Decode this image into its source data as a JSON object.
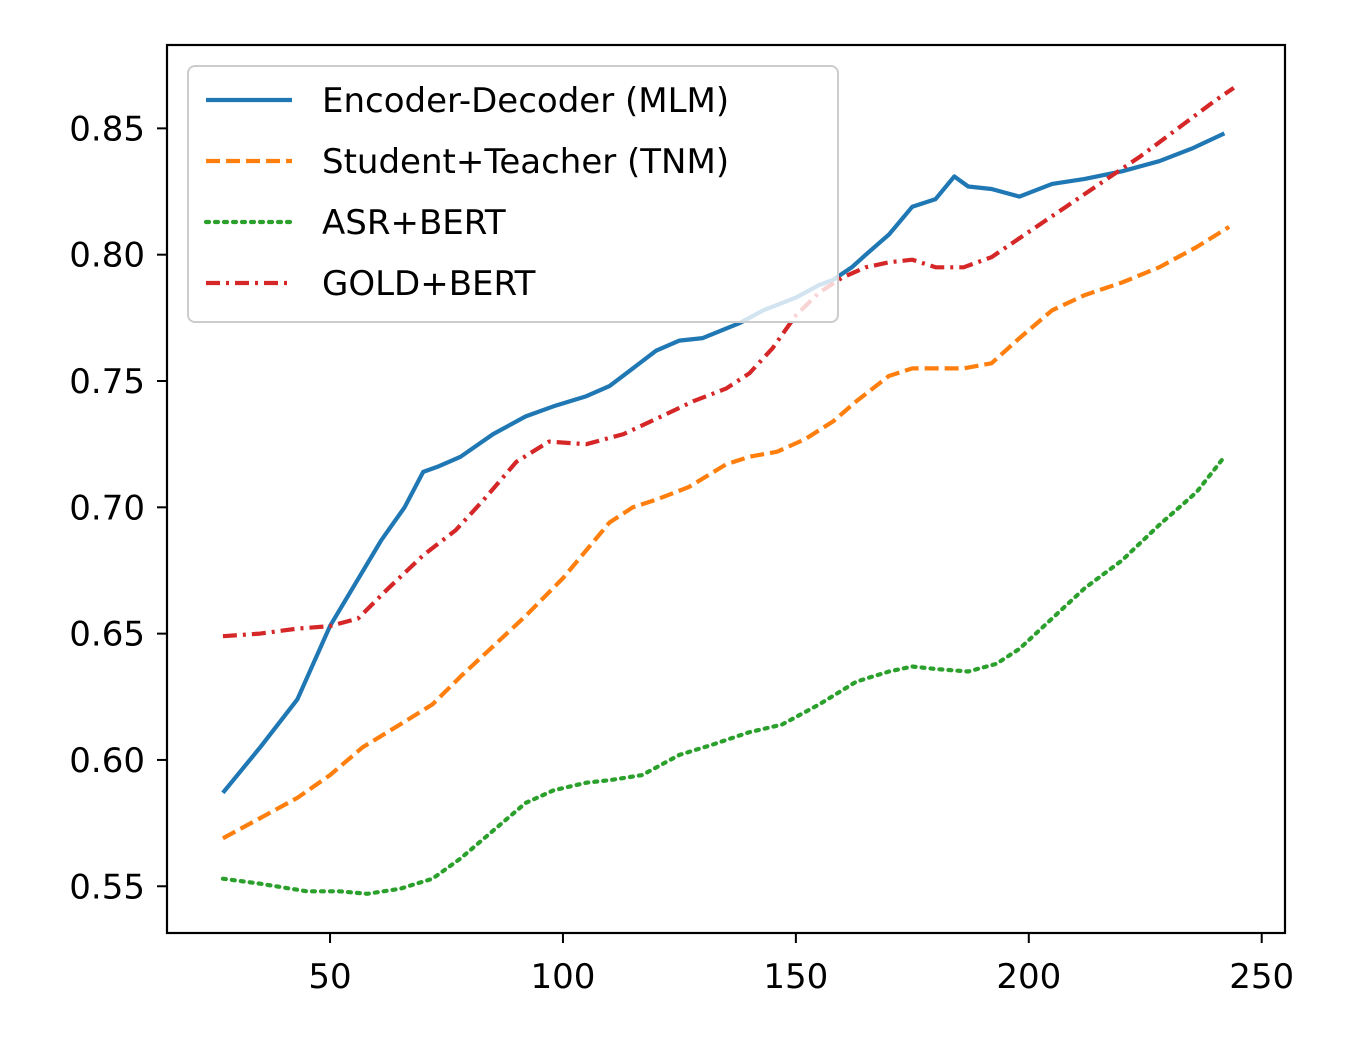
{
  "chart_data": {
    "type": "line",
    "title": "",
    "xlabel": "",
    "ylabel": "",
    "xlim": [
      15,
      255
    ],
    "ylim": [
      0.5315,
      0.883
    ],
    "x_ticks": [
      50,
      100,
      150,
      200,
      250
    ],
    "x_tick_labels": [
      "50",
      "100",
      "150",
      "200",
      "250"
    ],
    "y_ticks": [
      0.55,
      0.6,
      0.65,
      0.7,
      0.75,
      0.8,
      0.85
    ],
    "y_tick_labels": [
      "0.55",
      "0.60",
      "0.65",
      "0.70",
      "0.75",
      "0.80",
      "0.85"
    ],
    "grid": false,
    "legend_position": "upper-left",
    "series": [
      {
        "name": "Encoder-Decoder (MLM)",
        "color": "#1f77b4",
        "style": "solid",
        "points": [
          [
            27,
            0.587
          ],
          [
            35,
            0.605
          ],
          [
            43,
            0.624
          ],
          [
            50,
            0.653
          ],
          [
            61,
            0.687
          ],
          [
            66,
            0.7
          ],
          [
            70,
            0.714
          ],
          [
            73,
            0.716
          ],
          [
            78,
            0.72
          ],
          [
            85,
            0.729
          ],
          [
            92,
            0.736
          ],
          [
            98,
            0.74
          ],
          [
            105,
            0.744
          ],
          [
            110,
            0.748
          ],
          [
            115,
            0.755
          ],
          [
            120,
            0.762
          ],
          [
            125,
            0.766
          ],
          [
            130,
            0.767
          ],
          [
            138,
            0.773
          ],
          [
            143,
            0.778
          ],
          [
            150,
            0.783
          ],
          [
            155,
            0.788
          ],
          [
            158,
            0.79
          ],
          [
            162,
            0.795
          ],
          [
            165,
            0.8
          ],
          [
            170,
            0.808
          ],
          [
            175,
            0.819
          ],
          [
            180,
            0.822
          ],
          [
            184,
            0.831
          ],
          [
            187,
            0.827
          ],
          [
            192,
            0.826
          ],
          [
            198,
            0.823
          ],
          [
            205,
            0.828
          ],
          [
            212,
            0.83
          ],
          [
            220,
            0.833
          ],
          [
            228,
            0.837
          ],
          [
            235,
            0.842
          ],
          [
            242,
            0.848
          ]
        ]
      },
      {
        "name": "Student+Teacher (TNM)",
        "color": "#ff7f0e",
        "style": "dashed",
        "points": [
          [
            27,
            0.569
          ],
          [
            35,
            0.577
          ],
          [
            43,
            0.585
          ],
          [
            50,
            0.594
          ],
          [
            57,
            0.605
          ],
          [
            65,
            0.614
          ],
          [
            72,
            0.622
          ],
          [
            78,
            0.633
          ],
          [
            85,
            0.645
          ],
          [
            92,
            0.657
          ],
          [
            100,
            0.672
          ],
          [
            105,
            0.683
          ],
          [
            110,
            0.694
          ],
          [
            115,
            0.7
          ],
          [
            120,
            0.703
          ],
          [
            127,
            0.708
          ],
          [
            135,
            0.717
          ],
          [
            140,
            0.72
          ],
          [
            146,
            0.722
          ],
          [
            152,
            0.727
          ],
          [
            158,
            0.734
          ],
          [
            163,
            0.742
          ],
          [
            170,
            0.752
          ],
          [
            175,
            0.755
          ],
          [
            180,
            0.755
          ],
          [
            186,
            0.755
          ],
          [
            192,
            0.757
          ],
          [
            198,
            0.767
          ],
          [
            205,
            0.778
          ],
          [
            212,
            0.784
          ],
          [
            220,
            0.789
          ],
          [
            228,
            0.795
          ],
          [
            236,
            0.803
          ],
          [
            243,
            0.811
          ]
        ]
      },
      {
        "name": "ASR+BERT",
        "color": "#2ca02c",
        "style": "dotted",
        "points": [
          [
            27,
            0.553
          ],
          [
            35,
            0.551
          ],
          [
            45,
            0.548
          ],
          [
            52,
            0.548
          ],
          [
            58,
            0.547
          ],
          [
            65,
            0.549
          ],
          [
            72,
            0.553
          ],
          [
            78,
            0.561
          ],
          [
            85,
            0.572
          ],
          [
            92,
            0.583
          ],
          [
            98,
            0.588
          ],
          [
            105,
            0.591
          ],
          [
            110,
            0.592
          ],
          [
            117,
            0.594
          ],
          [
            125,
            0.602
          ],
          [
            132,
            0.606
          ],
          [
            140,
            0.611
          ],
          [
            147,
            0.614
          ],
          [
            155,
            0.622
          ],
          [
            163,
            0.631
          ],
          [
            170,
            0.635
          ],
          [
            175,
            0.637
          ],
          [
            180,
            0.636
          ],
          [
            187,
            0.635
          ],
          [
            193,
            0.638
          ],
          [
            198,
            0.644
          ],
          [
            205,
            0.656
          ],
          [
            212,
            0.668
          ],
          [
            220,
            0.679
          ],
          [
            228,
            0.693
          ],
          [
            236,
            0.706
          ],
          [
            242,
            0.72
          ]
        ]
      },
      {
        "name": "GOLD+BERT",
        "color": "#d62728",
        "style": "dashdot",
        "points": [
          [
            27,
            0.649
          ],
          [
            35,
            0.65
          ],
          [
            43,
            0.652
          ],
          [
            50,
            0.653
          ],
          [
            56,
            0.656
          ],
          [
            62,
            0.667
          ],
          [
            70,
            0.681
          ],
          [
            77,
            0.691
          ],
          [
            83,
            0.703
          ],
          [
            90,
            0.718
          ],
          [
            97,
            0.726
          ],
          [
            105,
            0.725
          ],
          [
            113,
            0.729
          ],
          [
            120,
            0.735
          ],
          [
            128,
            0.742
          ],
          [
            135,
            0.747
          ],
          [
            140,
            0.753
          ],
          [
            145,
            0.763
          ],
          [
            150,
            0.776
          ],
          [
            155,
            0.785
          ],
          [
            160,
            0.791
          ],
          [
            165,
            0.795
          ],
          [
            170,
            0.797
          ],
          [
            175,
            0.798
          ],
          [
            180,
            0.795
          ],
          [
            186,
            0.795
          ],
          [
            192,
            0.799
          ],
          [
            200,
            0.809
          ],
          [
            208,
            0.819
          ],
          [
            216,
            0.829
          ],
          [
            224,
            0.839
          ],
          [
            232,
            0.85
          ],
          [
            240,
            0.861
          ],
          [
            244,
            0.866
          ]
        ]
      }
    ]
  }
}
